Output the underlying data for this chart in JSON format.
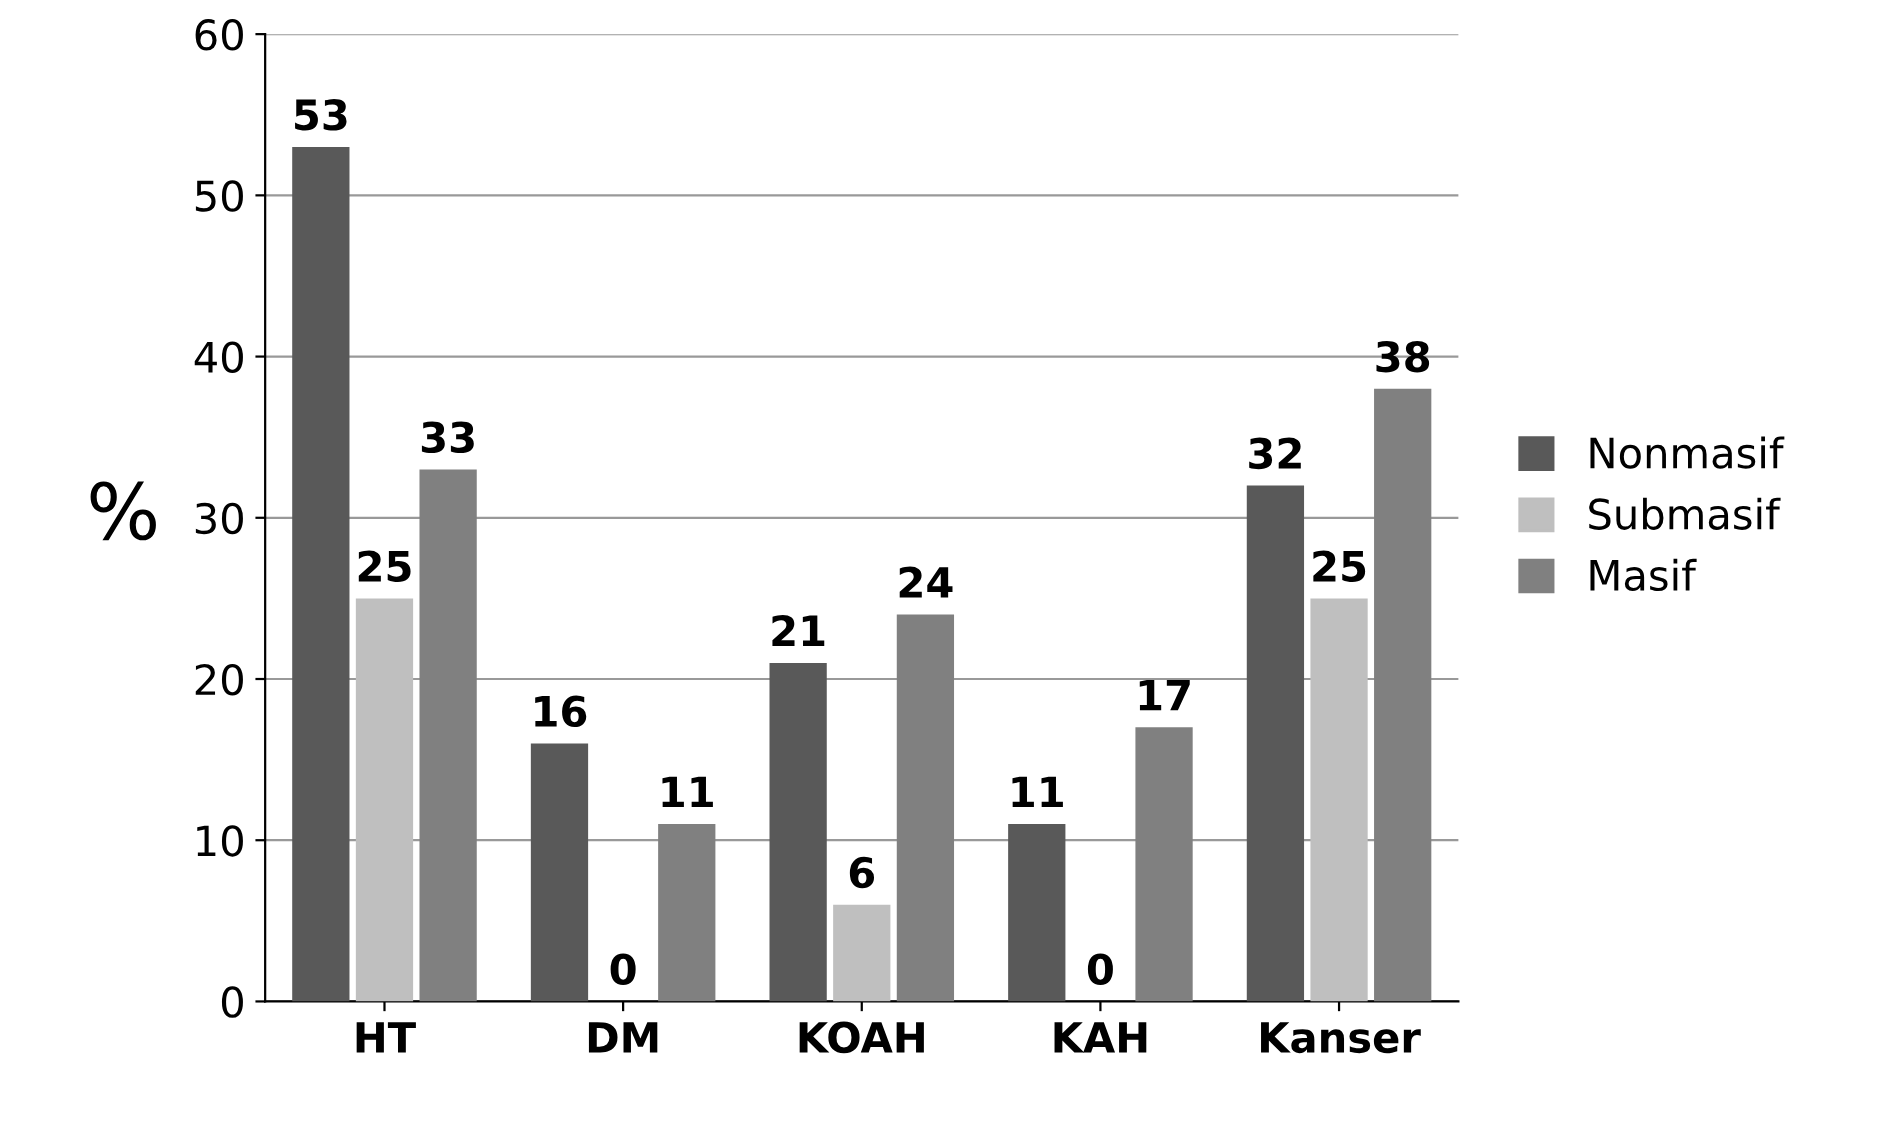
{
  "chart_data": {
    "type": "bar",
    "ylabel": "%",
    "categories": [
      "HT",
      "DM",
      "KOAH",
      "KAH",
      "Kanser"
    ],
    "series": [
      {
        "name": "Nonmasif",
        "color": "#595959",
        "values": [
          53,
          16,
          21,
          11,
          32
        ]
      },
      {
        "name": "Submasif",
        "color": "#bfbfbf",
        "values": [
          25,
          0,
          6,
          0,
          25
        ]
      },
      {
        "name": "Masif",
        "color": "#808080",
        "values": [
          33,
          11,
          24,
          17,
          38
        ]
      }
    ],
    "ylim": [
      0,
      60
    ],
    "yticks": [
      0,
      10,
      20,
      30,
      40,
      50,
      60
    ],
    "grid": "y",
    "legend": "right",
    "data_labels": true
  }
}
